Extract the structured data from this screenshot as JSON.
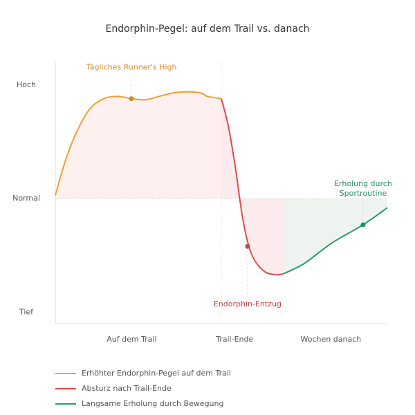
{
  "chart_data": {
    "type": "line",
    "title": "Endorphin-Pegel: auf dem Trail vs. danach",
    "xlim": [
      0,
      100
    ],
    "ylim": [
      -1.1,
      1.2
    ],
    "xticks": [
      {
        "value": 23,
        "label": "Auf dem Trail"
      },
      {
        "value": 54,
        "label": "Trail-Ende"
      },
      {
        "value": 83,
        "label": "Wochen danach"
      }
    ],
    "yticks": [
      {
        "value": 1,
        "label": "Hoch"
      },
      {
        "value": 0,
        "label": "Normal"
      },
      {
        "value": -1,
        "label": "Tief"
      }
    ],
    "series": [
      {
        "name": "Erhöhter Endorphin-Pegel auf dem Trail",
        "color": "#f0a030",
        "fill": "#fdf0ef",
        "x": [
          0,
          3.1,
          6.3,
          10.4,
          14.6,
          18.8,
          22.9,
          27.1,
          31.3,
          35.4,
          39.6,
          43.8,
          45.8,
          50
        ],
        "values": [
          0.03,
          0.34,
          0.58,
          0.79,
          0.88,
          0.9,
          0.88,
          0.87,
          0.9,
          0.93,
          0.94,
          0.93,
          0.9,
          0.88
        ]
      },
      {
        "name": "Absturz nach Trail-Ende",
        "color": "#e04848",
        "fill": "#fcebed",
        "x": [
          50,
          52.1,
          54.2,
          56.3,
          58.3,
          60.4,
          63.5,
          66.7,
          68.8
        ],
        "values": [
          0.88,
          0.64,
          0.28,
          -0.15,
          -0.42,
          -0.56,
          -0.65,
          -0.67,
          -0.66
        ]
      },
      {
        "name": "Langsame Erholung durch Bewegung",
        "color": "#2a9a6a",
        "fill": "#eef3f0",
        "x": [
          68.8,
          75,
          83.3,
          92.7,
          100
        ],
        "values": [
          -0.66,
          -0.57,
          -0.39,
          -0.23,
          -0.08
        ]
      }
    ],
    "annotations": [
      {
        "lines": [
          "Tägliches Runner's High"
        ],
        "x": 22.9,
        "y": 0.88,
        "color": "#d08a30",
        "position": "above"
      },
      {
        "lines": [
          "Endorphin-Entzug"
        ],
        "x": 57.9,
        "y": -0.42,
        "color": "#c04848",
        "position": "below"
      },
      {
        "lines": [
          "Erholung durch",
          "Sportroutine"
        ],
        "x": 92.7,
        "y": -0.23,
        "color": "#2a8a60",
        "position": "above"
      }
    ]
  }
}
